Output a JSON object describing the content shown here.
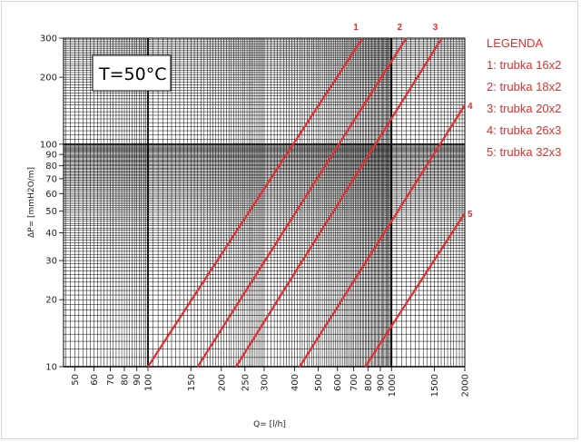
{
  "chart_data": {
    "type": "line",
    "title": "T=50°C",
    "xlabel": "Q= [l/h]",
    "ylabel": "ΔP= [mmH2O/m]",
    "x_scale": "log",
    "y_scale": "log",
    "xlim": [
      45,
      2000
    ],
    "ylim": [
      10,
      300
    ],
    "grid": true,
    "x_ticks": [
      50,
      60,
      70,
      80,
      90,
      100,
      150,
      200,
      250,
      300,
      400,
      500,
      600,
      700,
      800,
      900,
      1000,
      1500,
      2000
    ],
    "y_ticks": [
      10,
      20,
      30,
      40,
      50,
      60,
      70,
      80,
      90,
      100,
      200,
      300
    ],
    "legend_title": "LEGENDA",
    "legend_placement": "right",
    "legend_color": "#e03030",
    "series_color": "#e03030",
    "series": [
      {
        "name": "1",
        "legend": "1: trubka 16x2",
        "x": [
          100,
          760
        ],
        "y": [
          10,
          300
        ]
      },
      {
        "name": "2",
        "legend": "2: trubka 18x2",
        "x": [
          160,
          1150
        ],
        "y": [
          10,
          300
        ]
      },
      {
        "name": "3",
        "legend": "3: trubka 20x2",
        "x": [
          230,
          1610
        ],
        "y": [
          10,
          300
        ]
      },
      {
        "name": "4",
        "legend": "4: trubka 26x3",
        "x": [
          420,
          2000
        ],
        "y": [
          10,
          150
        ]
      },
      {
        "name": "5",
        "legend": "5: trubka 32x3",
        "x": [
          780,
          2000
        ],
        "y": [
          10,
          49
        ]
      }
    ]
  }
}
